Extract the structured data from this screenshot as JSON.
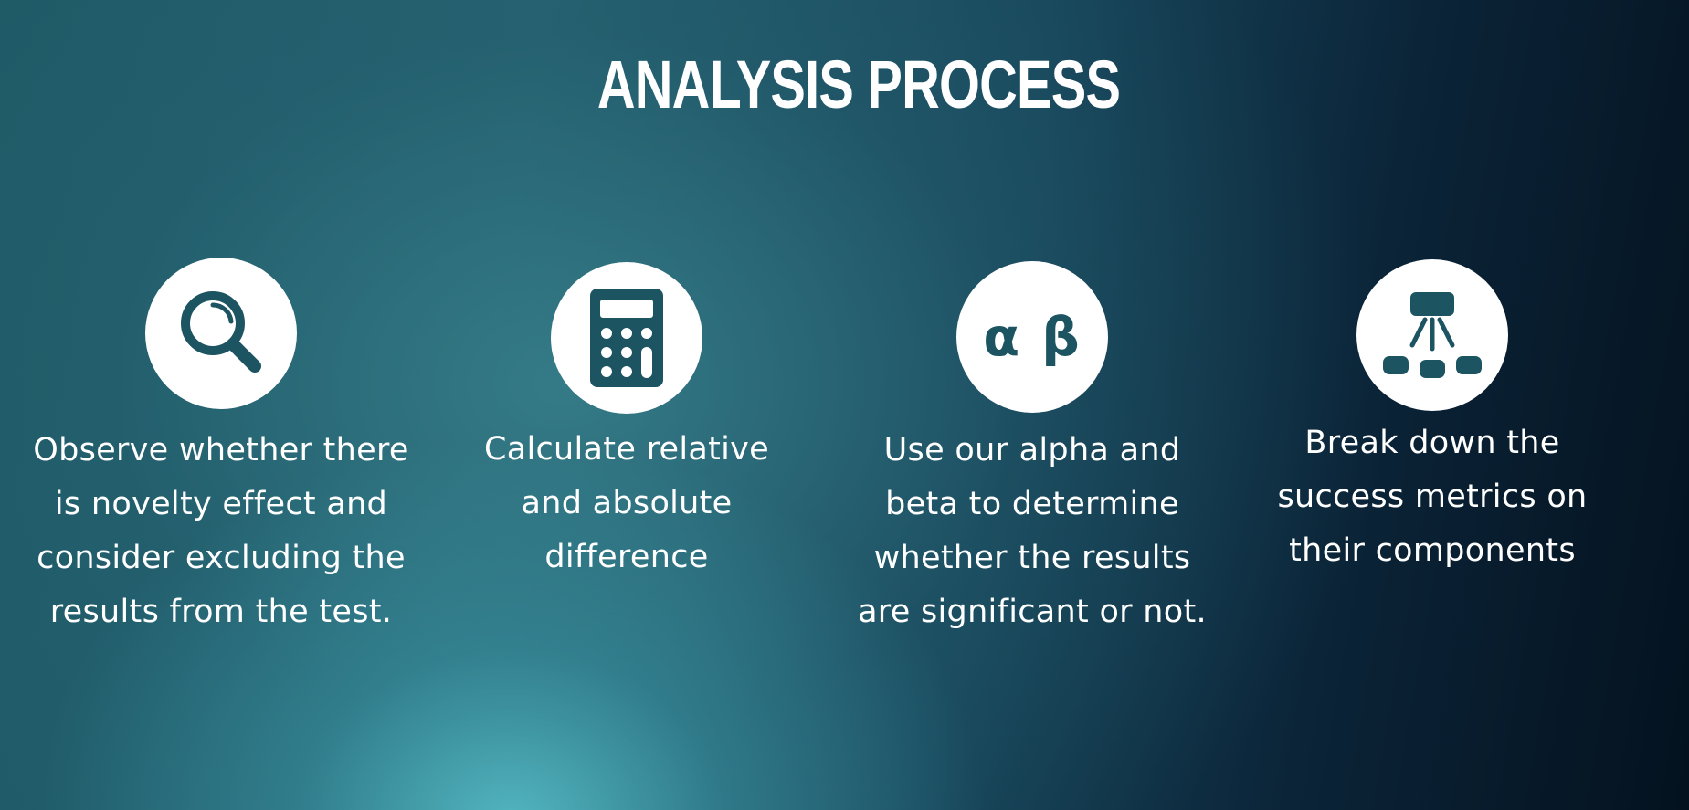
{
  "title": "ANALYSIS PROCESS",
  "colors": {
    "icon_fill": "#1d5462",
    "text": "#ffffff",
    "circle": "#ffffff"
  },
  "steps": [
    {
      "icon": "magnifier-icon",
      "text": "Observe whether there is novelty effect and consider excluding the results from the test."
    },
    {
      "icon": "calculator-icon",
      "text": "Calculate relative and absolute difference"
    },
    {
      "icon": "alpha-beta-icon",
      "symbols": "α β",
      "text": "Use our alpha and beta to determine whether the results are significant or not."
    },
    {
      "icon": "hierarchy-icon",
      "text": "Break down the success metrics on their components"
    }
  ]
}
